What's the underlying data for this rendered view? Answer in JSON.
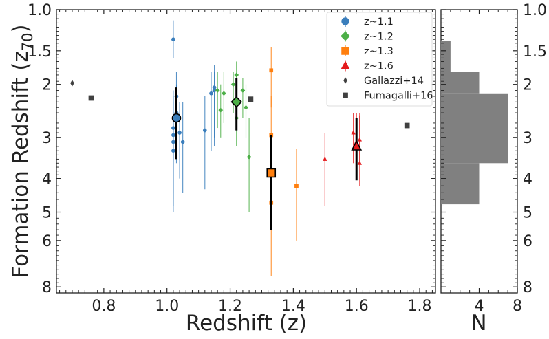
{
  "chart_data": {
    "type": "scatter",
    "xlabel": "Redshift (z)",
    "ylabel": "Formation Redshift (z",
    "ylabel_sub": "70",
    "ylabel_close": ")",
    "xlim": [
      0.65,
      1.85
    ],
    "ylim": [
      1.0,
      8.3
    ],
    "yscale": "log(1+z)",
    "x_ticks": [
      0.8,
      1.0,
      1.2,
      1.4,
      1.6,
      1.8
    ],
    "x_tick_labels": [
      "0.8",
      "1.0",
      "1.2",
      "1.4",
      "1.6",
      "1.8"
    ],
    "y_ticks": [
      1.0,
      1.5,
      2,
      3,
      4,
      5,
      6,
      8
    ],
    "y_tick_labels": [
      "1.0",
      "1.5",
      "2",
      "3",
      "4",
      "5",
      "6",
      "8"
    ],
    "legend": {
      "position": "top-right",
      "entries": [
        {
          "label": "z~1.1",
          "marker": "circle",
          "color": "#3a7ebc"
        },
        {
          "label": "z~1.2",
          "marker": "diamond",
          "color": "#4caf47"
        },
        {
          "label": "z~1.3",
          "marker": "square",
          "color": "#ff7f0e"
        },
        {
          "label": "z~1.6",
          "marker": "triangle",
          "color": "#e41a1c"
        },
        {
          "label": "Gallazzi+14",
          "marker": "thin-diamond",
          "color": "#404040"
        },
        {
          "label": "Fumagalli+16",
          "marker": "square",
          "color": "#404040"
        }
      ]
    },
    "individual_points": [
      {
        "name": "z~1.1",
        "color": "#3a7ebc",
        "marker": "circle",
        "points": [
          {
            "x": 1.02,
            "y": 1.35,
            "lo": 1.12,
            "hi": 1.6
          },
          {
            "x": 1.02,
            "y": 2.95,
            "lo": 2.2,
            "hi": 4.6
          },
          {
            "x": 1.02,
            "y": 3.1,
            "lo": 2.3,
            "hi": 5.0
          },
          {
            "x": 1.02,
            "y": 2.8,
            "lo": 2.1,
            "hi": 4.4
          },
          {
            "x": 1.02,
            "y": 3.3,
            "lo": 2.4,
            "hi": 4.8
          },
          {
            "x": 1.03,
            "y": 2.5,
            "lo": 2.0,
            "hi": 3.6
          },
          {
            "x": 1.03,
            "y": 2.2,
            "lo": 1.8,
            "hi": 3.4
          },
          {
            "x": 1.04,
            "y": 2.9,
            "lo": 2.3,
            "hi": 4.0
          },
          {
            "x": 1.05,
            "y": 3.1,
            "lo": 2.3,
            "hi": 4.4
          },
          {
            "x": 1.12,
            "y": 2.85,
            "lo": 2.2,
            "hi": 4.3
          },
          {
            "x": 1.14,
            "y": 2.15,
            "lo": 1.8,
            "hi": 3.3
          },
          {
            "x": 1.15,
            "y": 2.1,
            "lo": 1.8,
            "hi": 3.2
          },
          {
            "x": 1.15,
            "y": 2.05,
            "lo": 1.7,
            "hi": 3.0
          }
        ]
      },
      {
        "name": "z~1.2",
        "color": "#4caf47",
        "marker": "diamond",
        "points": [
          {
            "x": 1.16,
            "y": 2.1,
            "lo": 1.8,
            "hi": 2.8
          },
          {
            "x": 1.17,
            "y": 2.45,
            "lo": 2.0,
            "hi": 3.0
          },
          {
            "x": 1.18,
            "y": 2.15,
            "lo": 1.8,
            "hi": 2.7
          },
          {
            "x": 1.21,
            "y": 2.0,
            "lo": 1.8,
            "hi": 2.5
          },
          {
            "x": 1.22,
            "y": 1.85,
            "lo": 1.65,
            "hi": 2.2
          },
          {
            "x": 1.22,
            "y": 2.6,
            "lo": 2.1,
            "hi": 3.2
          },
          {
            "x": 1.24,
            "y": 2.1,
            "lo": 1.9,
            "hi": 2.6
          },
          {
            "x": 1.25,
            "y": 2.4,
            "lo": 2.0,
            "hi": 3.0
          },
          {
            "x": 1.26,
            "y": 3.45,
            "lo": 2.6,
            "hi": 5.0
          }
        ]
      },
      {
        "name": "z~1.3",
        "color": "#ff7f0e",
        "marker": "square",
        "points": [
          {
            "x": 1.33,
            "y": 1.78,
            "lo": 1.45,
            "hi": 2.4
          },
          {
            "x": 1.33,
            "y": 2.95,
            "lo": 2.2,
            "hi": 4.5
          },
          {
            "x": 1.33,
            "y": 4.7,
            "lo": 3.3,
            "hi": 7.5
          },
          {
            "x": 1.41,
            "y": 4.2,
            "lo": 3.25,
            "hi": 6.0
          }
        ]
      },
      {
        "name": "z~1.6",
        "color": "#e41a1c",
        "marker": "triangle",
        "points": [
          {
            "x": 1.5,
            "y": 3.5,
            "lo": 2.9,
            "hi": 4.8
          },
          {
            "x": 1.59,
            "y": 2.9,
            "lo": 2.5,
            "hi": 3.6
          },
          {
            "x": 1.6,
            "y": 3.1,
            "lo": 2.5,
            "hi": 3.8
          },
          {
            "x": 1.61,
            "y": 3.6,
            "lo": 2.5,
            "hi": 4.2
          },
          {
            "x": 1.61,
            "y": 3.05,
            "lo": 2.55,
            "hi": 3.6
          }
        ]
      }
    ],
    "mean_points": [
      {
        "name": "z~1.1",
        "color": "#3a7ebc",
        "marker": "circle",
        "x": 1.03,
        "y": 2.6,
        "lo": 2.05,
        "hi": 3.5
      },
      {
        "name": "z~1.2",
        "color": "#4caf47",
        "marker": "diamond",
        "x": 1.22,
        "y": 2.3,
        "lo": 1.9,
        "hi": 2.85
      },
      {
        "name": "z~1.3",
        "color": "#ff7f0e",
        "marker": "square",
        "x": 1.33,
        "y": 3.85,
        "lo": 2.95,
        "hi": 5.6
      },
      {
        "name": "z~1.6",
        "color": "#e41a1c",
        "marker": "triangle",
        "x": 1.6,
        "y": 3.2,
        "lo": 2.6,
        "hi": 4.05
      }
    ],
    "literature": [
      {
        "name": "Gallazzi+14",
        "marker": "thin-diamond",
        "color": "#404040",
        "points": [
          {
            "x": 0.7,
            "y": 1.98
          }
        ]
      },
      {
        "name": "Fumagalli+16",
        "marker": "square",
        "color": "#404040",
        "points": [
          {
            "x": 0.76,
            "y": 2.23
          },
          {
            "x": 1.265,
            "y": 2.25
          },
          {
            "x": 1.76,
            "y": 2.75
          }
        ]
      }
    ],
    "histogram": {
      "xlabel": "N",
      "x_ticks": [
        4,
        8
      ],
      "x_tick_labels": [
        "4",
        "8"
      ],
      "xlim": [
        0,
        8
      ],
      "color": "#808080",
      "bins": [
        {
          "lo": 1.37,
          "hi": 1.8,
          "count": 1
        },
        {
          "lo": 1.8,
          "hi": 2.15,
          "count": 4
        },
        {
          "lo": 2.15,
          "hi": 3.6,
          "count": 7
        },
        {
          "lo": 3.6,
          "hi": 4.75,
          "count": 4
        }
      ]
    }
  }
}
